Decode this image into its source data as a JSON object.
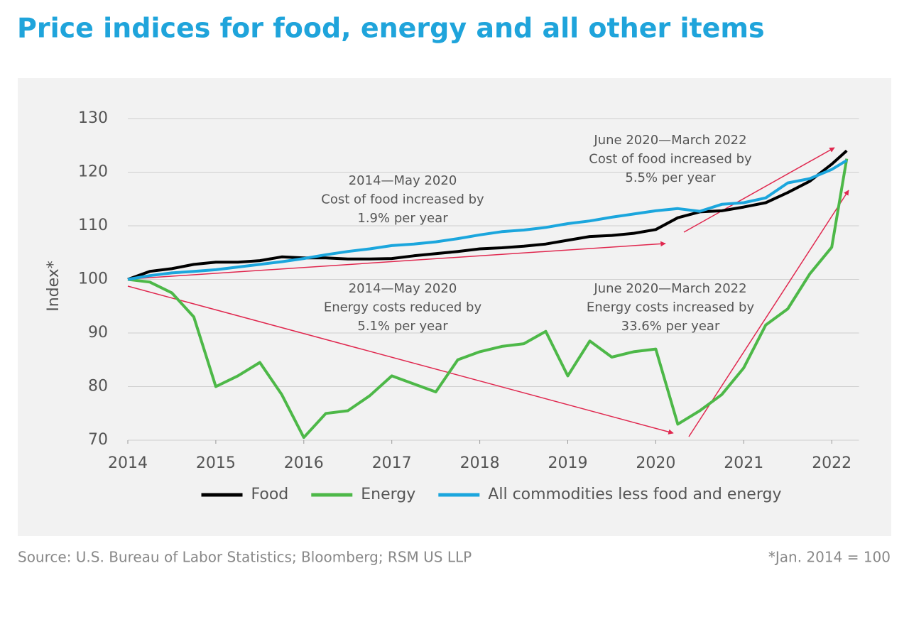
{
  "chart_data": {
    "type": "line",
    "title": "Price indices for food, energy and all other items",
    "y_label": "Index*",
    "source": "Source: U.S. Bureau of Labor Statistics; Bloomberg; RSM US LLP",
    "footnote": "*Jan. 2014 = 100",
    "x": [
      2014,
      2014.25,
      2014.5,
      2014.75,
      2015,
      2015.25,
      2015.5,
      2015.75,
      2016,
      2016.25,
      2016.5,
      2016.75,
      2017,
      2017.25,
      2017.5,
      2017.75,
      2018,
      2018.25,
      2018.5,
      2018.75,
      2019,
      2019.25,
      2019.5,
      2019.75,
      2020,
      2020.25,
      2020.5,
      2020.75,
      2021,
      2021.25,
      2021.5,
      2021.75,
      2022,
      2022.17
    ],
    "xlim": [
      2014,
      2022.31
    ],
    "xticks": [
      2014,
      2015,
      2016,
      2017,
      2018,
      2019,
      2020,
      2021,
      2022
    ],
    "ylim": [
      70,
      130
    ],
    "yticks": [
      70,
      80,
      90,
      100,
      110,
      120,
      130
    ],
    "grid": true,
    "series": [
      {
        "name": "Food",
        "color": "#000000",
        "values": [
          100,
          101.5,
          102,
          102.8,
          103.2,
          103.2,
          103.5,
          104.2,
          104.0,
          104.0,
          103.8,
          103.8,
          103.9,
          104.4,
          104.8,
          105.2,
          105.7,
          105.9,
          106.2,
          106.6,
          107.3,
          108.0,
          108.2,
          108.6,
          109.3,
          111.5,
          112.6,
          112.8,
          113.5,
          114.3,
          116.2,
          118.3,
          121.5,
          124
        ]
      },
      {
        "name": "Energy",
        "color": "#4db848",
        "values": [
          100,
          99.5,
          97.5,
          93,
          80,
          82,
          84.5,
          78.5,
          70.5,
          75,
          75.5,
          78.3,
          82,
          80.5,
          79,
          85,
          86.5,
          87.5,
          88,
          90.3,
          82,
          88.5,
          85.5,
          86.5,
          87,
          73,
          75.5,
          78.5,
          83.5,
          91.5,
          94.5,
          101,
          106,
          122.5
        ]
      },
      {
        "name": "All commodities less food and energy",
        "color": "#1ba6dd",
        "values": [
          100,
          100.7,
          101.2,
          101.5,
          101.8,
          102.3,
          102.8,
          103.3,
          103.9,
          104.6,
          105.2,
          105.7,
          106.3,
          106.6,
          107,
          107.6,
          108.3,
          108.9,
          109.2,
          109.7,
          110.4,
          110.9,
          111.6,
          112.2,
          112.8,
          113.2,
          112.7,
          114,
          114.3,
          115.2,
          118,
          118.8,
          120.5,
          122.2
        ]
      }
    ],
    "annotations": [
      [
        "2014—May 2020",
        "Cost of food  increased by",
        "1.9% per year"
      ],
      [
        "June 2020—March 2022",
        "Cost of food increased by",
        "5.5% per year"
      ],
      [
        "2014—May 2020",
        "Energy costs reduced by",
        "5.1% per year"
      ],
      [
        "June 2020—March 2022",
        "Energy costs increased by",
        "33.6% per year"
      ]
    ]
  }
}
